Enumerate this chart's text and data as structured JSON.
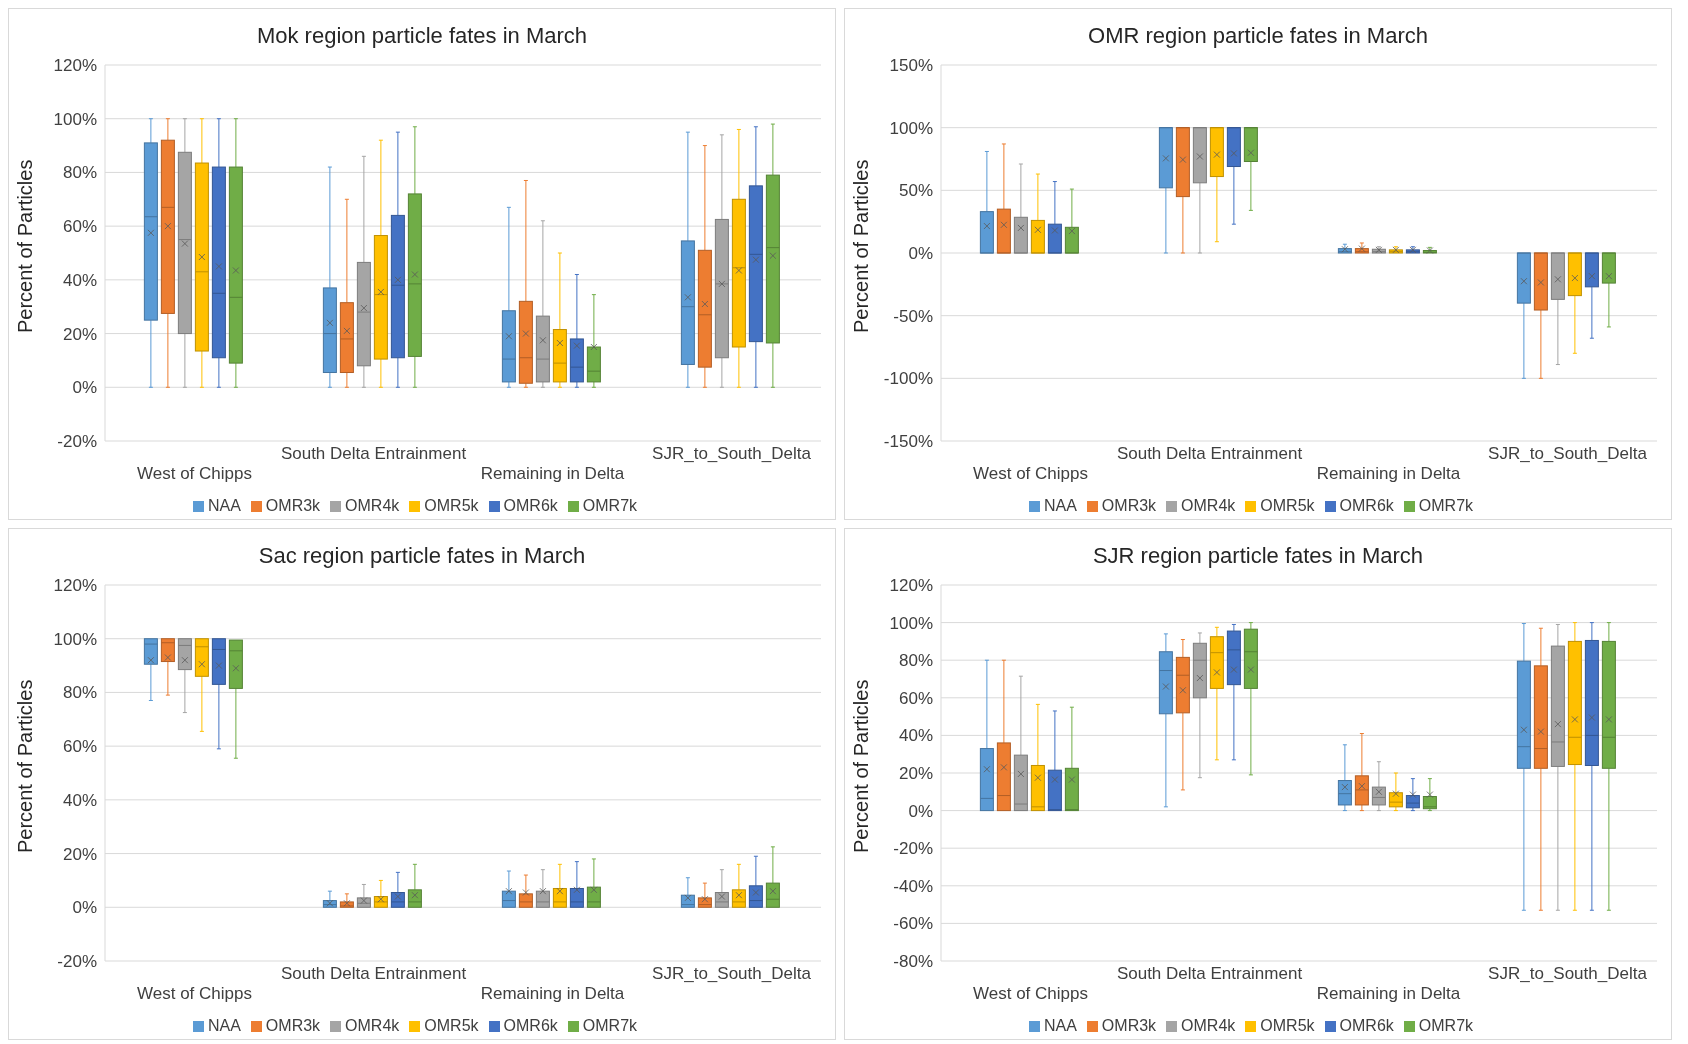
{
  "chart_data": [
    {
      "type": "box",
      "title": "Mok region particle fates in March",
      "ylabel": "Percent of Particles",
      "categories": [
        "West of Chipps",
        "South Delta Entrainment",
        "Remaining in Delta",
        "SJR_to_South_Delta"
      ],
      "ylim": [
        -20,
        120
      ],
      "yticks": [
        {
          "value": -20,
          "label": "-20%"
        },
        {
          "value": 0,
          "label": "0%"
        },
        {
          "value": 20,
          "label": "20%"
        },
        {
          "value": 40,
          "label": "40%"
        },
        {
          "value": 60,
          "label": "60%"
        },
        {
          "value": 80,
          "label": "80%"
        },
        {
          "value": 100,
          "label": "100%"
        },
        {
          "value": 120,
          "label": "120%"
        }
      ],
      "grid": "y",
      "legend": "bottom",
      "series": [
        {
          "name": "NAA",
          "color": "#5b9bd5",
          "boxes": [
            {
              "low": 0,
              "q1": 25,
              "median": 63.5,
              "q3": 91,
              "high": 100,
              "mean": 57.5
            },
            {
              "low": 0,
              "q1": 5.5,
              "median": 20,
              "q3": 37,
              "high": 82,
              "mean": 24
            },
            {
              "low": 0,
              "q1": 2,
              "median": 10.5,
              "q3": 28.5,
              "high": 67,
              "mean": 19
            },
            {
              "low": 0,
              "q1": 8.5,
              "median": 30,
              "q3": 54.5,
              "high": 95,
              "mean": 33.5
            }
          ]
        },
        {
          "name": "OMR3k",
          "color": "#ed7d31",
          "boxes": [
            {
              "low": 0,
              "q1": 27.5,
              "median": 67,
              "q3": 92,
              "high": 100,
              "mean": 60
            },
            {
              "low": 0,
              "q1": 5.5,
              "median": 18,
              "q3": 31.5,
              "high": 70,
              "mean": 21
            },
            {
              "low": 0,
              "q1": 1.5,
              "median": 11,
              "q3": 32,
              "high": 77,
              "mean": 20
            },
            {
              "low": 0,
              "q1": 7.5,
              "median": 27,
              "q3": 51,
              "high": 90,
              "mean": 31
            }
          ]
        },
        {
          "name": "OMR4k",
          "color": "#a5a5a5",
          "boxes": [
            {
              "low": 0,
              "q1": 20,
              "median": 55,
              "q3": 87.5,
              "high": 100,
              "mean": 53.5
            },
            {
              "low": 0,
              "q1": 8,
              "median": 28,
              "q3": 46.5,
              "high": 86,
              "mean": 29.5
            },
            {
              "low": 0,
              "q1": 2,
              "median": 10.5,
              "q3": 26.5,
              "high": 62,
              "mean": 17.5
            },
            {
              "low": 0,
              "q1": 11,
              "median": 38.5,
              "q3": 62.5,
              "high": 94,
              "mean": 38.5
            }
          ]
        },
        {
          "name": "OMR5k",
          "color": "#ffc000",
          "boxes": [
            {
              "low": 0,
              "q1": 13.5,
              "median": 43,
              "q3": 83.5,
              "high": 100,
              "mean": 48.5
            },
            {
              "low": 0,
              "q1": 10.5,
              "median": 34.5,
              "q3": 56.5,
              "high": 92,
              "mean": 35.5
            },
            {
              "low": 0,
              "q1": 2,
              "median": 9,
              "q3": 21.5,
              "high": 50,
              "mean": 16.5
            },
            {
              "low": 0,
              "q1": 15,
              "median": 44.5,
              "q3": 70,
              "high": 96,
              "mean": 43.5
            }
          ]
        },
        {
          "name": "OMR6k",
          "color": "#4472c4",
          "boxes": [
            {
              "low": 0,
              "q1": 11,
              "median": 35,
              "q3": 82,
              "high": 100,
              "mean": 45
            },
            {
              "low": 0,
              "q1": 11,
              "median": 38,
              "q3": 64,
              "high": 95,
              "mean": 40
            },
            {
              "low": 0,
              "q1": 2,
              "median": 7.5,
              "q3": 18,
              "high": 42,
              "mean": 15.5
            },
            {
              "low": 0,
              "q1": 17,
              "median": 49.5,
              "q3": 75,
              "high": 97,
              "mean": 47.5
            }
          ]
        },
        {
          "name": "OMR7k",
          "color": "#70ad47",
          "boxes": [
            {
              "low": 0,
              "q1": 9,
              "median": 33.5,
              "q3": 82,
              "high": 100,
              "mean": 43.5
            },
            {
              "low": 0,
              "q1": 11.5,
              "median": 38.5,
              "q3": 72,
              "high": 97,
              "mean": 42
            },
            {
              "low": 0,
              "q1": 2,
              "median": 6,
              "q3": 15,
              "high": 34.5,
              "mean": 15
            },
            {
              "low": 0,
              "q1": 16.5,
              "median": 52,
              "q3": 79,
              "high": 98,
              "mean": 49
            }
          ]
        }
      ]
    },
    {
      "type": "box",
      "title": "OMR region particle fates in March",
      "ylabel": "Percent of Particles",
      "categories": [
        "West of Chipps",
        "South Delta Entrainment",
        "Remaining in Delta",
        "SJR_to_South_Delta"
      ],
      "ylim": [
        -150,
        150
      ],
      "yticks": [
        {
          "value": -150,
          "label": "-150%"
        },
        {
          "value": -100,
          "label": "-100%"
        },
        {
          "value": -50,
          "label": "-50%"
        },
        {
          "value": 0,
          "label": "0%"
        },
        {
          "value": 50,
          "label": "50%"
        },
        {
          "value": 100,
          "label": "100%"
        },
        {
          "value": 150,
          "label": "150%"
        }
      ],
      "grid": "y",
      "legend": "bottom",
      "series": [
        {
          "name": "NAA",
          "color": "#5b9bd5",
          "boxes": [
            {
              "low": 0,
              "q1": 0,
              "median": 0,
              "q3": 33,
              "high": 81,
              "mean": 21.5
            },
            {
              "low": 0,
              "q1": 52,
              "median": 100,
              "q3": 100,
              "high": 100,
              "mean": 75.5
            },
            {
              "low": 0,
              "q1": 0,
              "median": 1,
              "q3": 3.5,
              "high": 7,
              "mean": 3
            },
            {
              "low": -100,
              "q1": -40,
              "median": 0,
              "q3": 0,
              "high": 0,
              "mean": -22.5
            }
          ]
        },
        {
          "name": "OMR3k",
          "color": "#ed7d31",
          "boxes": [
            {
              "low": 0,
              "q1": 0,
              "median": 0,
              "q3": 35,
              "high": 87,
              "mean": 22.5
            },
            {
              "low": 0,
              "q1": 45,
              "median": 100,
              "q3": 100,
              "high": 100,
              "mean": 74.5
            },
            {
              "low": 0,
              "q1": 0,
              "median": 1,
              "q3": 3.5,
              "high": 8,
              "mean": 3.5
            },
            {
              "low": -100,
              "q1": -45.5,
              "median": 0,
              "q3": 0,
              "high": 0,
              "mean": -23.5
            }
          ]
        },
        {
          "name": "OMR4k",
          "color": "#a5a5a5",
          "boxes": [
            {
              "low": 0,
              "q1": 0,
              "median": 0,
              "q3": 28.5,
              "high": 71,
              "mean": 20
            },
            {
              "low": 0,
              "q1": 56,
              "median": 100,
              "q3": 100,
              "high": 100,
              "mean": 77
            },
            {
              "low": 0,
              "q1": 0,
              "median": 1,
              "q3": 3,
              "high": 5,
              "mean": 2.5
            },
            {
              "low": -89,
              "q1": -37,
              "median": 0,
              "q3": 0,
              "high": 0,
              "mean": -21
            }
          ]
        },
        {
          "name": "OMR5k",
          "color": "#ffc000",
          "boxes": [
            {
              "low": 0,
              "q1": 0,
              "median": 0,
              "q3": 26,
              "high": 63,
              "mean": 18.5
            },
            {
              "low": 9,
              "q1": 61,
              "median": 100,
              "q3": 100,
              "high": 100,
              "mean": 78.5
            },
            {
              "low": 0,
              "q1": 0,
              "median": 1,
              "q3": 2.5,
              "high": 5,
              "mean": 2.5
            },
            {
              "low": -80,
              "q1": -34,
              "median": 0,
              "q3": 0,
              "high": 0,
              "mean": -20
            }
          ]
        },
        {
          "name": "OMR6k",
          "color": "#4472c4",
          "boxes": [
            {
              "low": 0,
              "q1": 0,
              "median": 0,
              "q3": 23,
              "high": 57,
              "mean": 18
            },
            {
              "low": 23,
              "q1": 69,
              "median": 100,
              "q3": 100,
              "high": 100,
              "mean": 79.5
            },
            {
              "low": 0,
              "q1": 0,
              "median": 1,
              "q3": 2.5,
              "high": 5,
              "mean": 2.5
            },
            {
              "low": -68,
              "q1": -27,
              "median": 0,
              "q3": 0,
              "high": 0,
              "mean": -18.5
            }
          ]
        },
        {
          "name": "OMR7k",
          "color": "#70ad47",
          "boxes": [
            {
              "low": 0,
              "q1": 0,
              "median": 0,
              "q3": 20.5,
              "high": 51,
              "mean": 17.5
            },
            {
              "low": 34,
              "q1": 73,
              "median": 100,
              "q3": 100,
              "high": 100,
              "mean": 80
            },
            {
              "low": 0,
              "q1": 0,
              "median": 0.5,
              "q3": 2,
              "high": 4.5,
              "mean": 2
            },
            {
              "low": -59,
              "q1": -24,
              "median": 0,
              "q3": 0,
              "high": 0,
              "mean": -18.5
            }
          ]
        }
      ]
    },
    {
      "type": "box",
      "title": "Sac region particle fates in March",
      "ylabel": "Percent of Particles",
      "categories": [
        "West of Chipps",
        "South Delta Entrainment",
        "Remaining in Delta",
        "SJR_to_South_Delta"
      ],
      "ylim": [
        -20,
        120
      ],
      "yticks": [
        {
          "value": -20,
          "label": "-20%"
        },
        {
          "value": 0,
          "label": "0%"
        },
        {
          "value": 20,
          "label": "20%"
        },
        {
          "value": 40,
          "label": "40%"
        },
        {
          "value": 60,
          "label": "60%"
        },
        {
          "value": 80,
          "label": "80%"
        },
        {
          "value": 100,
          "label": "100%"
        },
        {
          "value": 120,
          "label": "120%"
        }
      ],
      "grid": "y",
      "legend": "bottom",
      "series": [
        {
          "name": "NAA",
          "color": "#5b9bd5",
          "boxes": [
            {
              "low": 77,
              "q1": 90.5,
              "median": 98,
              "q3": 100,
              "high": 100,
              "mean": 92
            },
            {
              "low": 0,
              "q1": 0,
              "median": 1,
              "q3": 2.5,
              "high": 6,
              "mean": 1.5
            },
            {
              "low": 0,
              "q1": 0,
              "median": 2.5,
              "q3": 6,
              "high": 13.5,
              "mean": 6
            },
            {
              "low": 0,
              "q1": 0,
              "median": 1,
              "q3": 4.5,
              "high": 11,
              "mean": 3.5
            }
          ]
        },
        {
          "name": "OMR3k",
          "color": "#ed7d31",
          "boxes": [
            {
              "low": 79,
              "q1": 91.5,
              "median": 98.5,
              "q3": 100,
              "high": 100,
              "mean": 93
            },
            {
              "low": 0,
              "q1": 0,
              "median": 0.5,
              "q3": 2,
              "high": 5,
              "mean": 1.5
            },
            {
              "low": 0,
              "q1": 0,
              "median": 2,
              "q3": 5,
              "high": 12,
              "mean": 5.5
            },
            {
              "low": 0,
              "q1": 0,
              "median": 1,
              "q3": 3.5,
              "high": 9,
              "mean": 3
            }
          ]
        },
        {
          "name": "OMR4k",
          "color": "#a5a5a5",
          "boxes": [
            {
              "low": 72.5,
              "q1": 88.5,
              "median": 97.5,
              "q3": 100,
              "high": 100,
              "mean": 92
            },
            {
              "low": 0,
              "q1": 0,
              "median": 1.5,
              "q3": 3.5,
              "high": 8.5,
              "mean": 2.5
            },
            {
              "low": 0,
              "q1": 0,
              "median": 2,
              "q3": 6,
              "high": 14,
              "mean": 6
            },
            {
              "low": 0,
              "q1": 0,
              "median": 2,
              "q3": 5.5,
              "high": 14,
              "mean": 4
            }
          ]
        },
        {
          "name": "OMR5k",
          "color": "#ffc000",
          "boxes": [
            {
              "low": 65.5,
              "q1": 86,
              "median": 97,
              "q3": 100,
              "high": 100,
              "mean": 90.5
            },
            {
              "low": 0,
              "q1": 0,
              "median": 2,
              "q3": 4,
              "high": 10,
              "mean": 3
            },
            {
              "low": 0,
              "q1": 0,
              "median": 2,
              "q3": 7,
              "high": 16,
              "mean": 6
            },
            {
              "low": 0,
              "q1": 0,
              "median": 2,
              "q3": 6.5,
              "high": 16,
              "mean": 4.5
            }
          ]
        },
        {
          "name": "OMR6k",
          "color": "#4472c4",
          "boxes": [
            {
              "low": 59,
              "q1": 83,
              "median": 96,
              "q3": 100,
              "high": 100,
              "mean": 90
            },
            {
              "low": 0,
              "q1": 0,
              "median": 2,
              "q3": 5.5,
              "high": 13,
              "mean": 4
            },
            {
              "low": 0,
              "q1": 0,
              "median": 2,
              "q3": 7,
              "high": 17,
              "mean": 6.5
            },
            {
              "low": 0,
              "q1": 0,
              "median": 2.5,
              "q3": 8,
              "high": 19,
              "mean": 5.5
            }
          ]
        },
        {
          "name": "OMR7k",
          "color": "#70ad47",
          "boxes": [
            {
              "low": 55.5,
              "q1": 81.5,
              "median": 95.5,
              "q3": 99.5,
              "high": 100,
              "mean": 89
            },
            {
              "low": 0,
              "q1": 0,
              "median": 2,
              "q3": 6.5,
              "high": 16,
              "mean": 4.5
            },
            {
              "low": 0,
              "q1": 0,
              "median": 2,
              "q3": 7.5,
              "high": 18,
              "mean": 6.5
            },
            {
              "low": 0,
              "q1": 0,
              "median": 3,
              "q3": 9,
              "high": 22.5,
              "mean": 6
            }
          ]
        }
      ]
    },
    {
      "type": "box",
      "title": "SJR region particle fates in March",
      "ylabel": "Percent of Particles",
      "categories": [
        "West of Chipps",
        "South Delta Entrainment",
        "Remaining in Delta",
        "SJR_to_South_Delta"
      ],
      "ylim": [
        -80,
        120
      ],
      "yticks": [
        {
          "value": -80,
          "label": "-80%"
        },
        {
          "value": -60,
          "label": "-60%"
        },
        {
          "value": -40,
          "label": "-40%"
        },
        {
          "value": -20,
          "label": "-20%"
        },
        {
          "value": 0,
          "label": "0%"
        },
        {
          "value": 20,
          "label": "20%"
        },
        {
          "value": 40,
          "label": "40%"
        },
        {
          "value": 60,
          "label": "60%"
        },
        {
          "value": 80,
          "label": "80%"
        },
        {
          "value": 100,
          "label": "100%"
        },
        {
          "value": 120,
          "label": "120%"
        }
      ],
      "grid": "y",
      "legend": "bottom",
      "series": [
        {
          "name": "NAA",
          "color": "#5b9bd5",
          "boxes": [
            {
              "low": 0,
              "q1": 0,
              "median": 6.5,
              "q3": 33,
              "high": 80,
              "mean": 22
            },
            {
              "low": 2,
              "q1": 51.5,
              "median": 74.5,
              "q3": 84.5,
              "high": 94,
              "mean": 66
            },
            {
              "low": 0,
              "q1": 3,
              "median": 9,
              "q3": 16,
              "high": 35,
              "mean": 12.5
            },
            {
              "low": -53,
              "q1": 22.5,
              "median": 34,
              "q3": 79.5,
              "high": 99.5,
              "mean": 43
            }
          ]
        },
        {
          "name": "OMR3k",
          "color": "#ed7d31",
          "boxes": [
            {
              "low": 0,
              "q1": 0,
              "median": 8,
              "q3": 36,
              "high": 80,
              "mean": 23
            },
            {
              "low": 11,
              "q1": 52,
              "median": 72,
              "q3": 81.5,
              "high": 91,
              "mean": 64
            },
            {
              "low": 0,
              "q1": 3,
              "median": 11,
              "q3": 18.5,
              "high": 41,
              "mean": 13
            },
            {
              "low": -53,
              "q1": 22.5,
              "median": 33,
              "q3": 77,
              "high": 97,
              "mean": 42
            }
          ]
        },
        {
          "name": "OMR4k",
          "color": "#a5a5a5",
          "boxes": [
            {
              "low": 0,
              "q1": 0,
              "median": 3.5,
              "q3": 29.5,
              "high": 71.5,
              "mean": 19.5
            },
            {
              "low": 17.5,
              "q1": 60,
              "median": 80,
              "q3": 89,
              "high": 94.5,
              "mean": 70.5
            },
            {
              "low": 0,
              "q1": 3,
              "median": 7,
              "q3": 12.5,
              "high": 26,
              "mean": 10
            },
            {
              "low": -53,
              "q1": 23.5,
              "median": 36.5,
              "q3": 87.5,
              "high": 99,
              "mean": 46
            }
          ]
        },
        {
          "name": "OMR5k",
          "color": "#ffc000",
          "boxes": [
            {
              "low": 0,
              "q1": 0,
              "median": 2,
              "q3": 24,
              "high": 56.5,
              "mean": 17.5
            },
            {
              "low": 27,
              "q1": 65,
              "median": 84,
              "q3": 92.5,
              "high": 97.5,
              "mean": 73.5
            },
            {
              "low": 0,
              "q1": 2,
              "median": 4.5,
              "q3": 9.5,
              "high": 20,
              "mean": 9
            },
            {
              "low": -53,
              "q1": 24.5,
              "median": 39,
              "q3": 90,
              "high": 100,
              "mean": 48.5
            }
          ]
        },
        {
          "name": "OMR6k",
          "color": "#4472c4",
          "boxes": [
            {
              "low": 0,
              "q1": 0,
              "median": 0.5,
              "q3": 21.5,
              "high": 53,
              "mean": 16.5
            },
            {
              "low": 27,
              "q1": 67,
              "median": 85.5,
              "q3": 95.5,
              "high": 99,
              "mean": 75
            },
            {
              "low": 0,
              "q1": 1.5,
              "median": 4,
              "q3": 8,
              "high": 17,
              "mean": 8.5
            },
            {
              "low": -53,
              "q1": 24,
              "median": 40,
              "q3": 90.5,
              "high": 100,
              "mean": 49.5
            }
          ]
        },
        {
          "name": "OMR7k",
          "color": "#70ad47",
          "boxes": [
            {
              "low": 0,
              "q1": 0,
              "median": 0.5,
              "q3": 22.5,
              "high": 55,
              "mean": 16.5
            },
            {
              "low": 19,
              "q1": 65,
              "median": 84.5,
              "q3": 96.5,
              "high": 100,
              "mean": 75
            },
            {
              "low": 0,
              "q1": 1,
              "median": 2,
              "q3": 7.5,
              "high": 17,
              "mean": 8.5
            },
            {
              "low": -53,
              "q1": 22.5,
              "median": 39,
              "q3": 90,
              "high": 100,
              "mean": 48.5
            }
          ]
        }
      ]
    }
  ]
}
